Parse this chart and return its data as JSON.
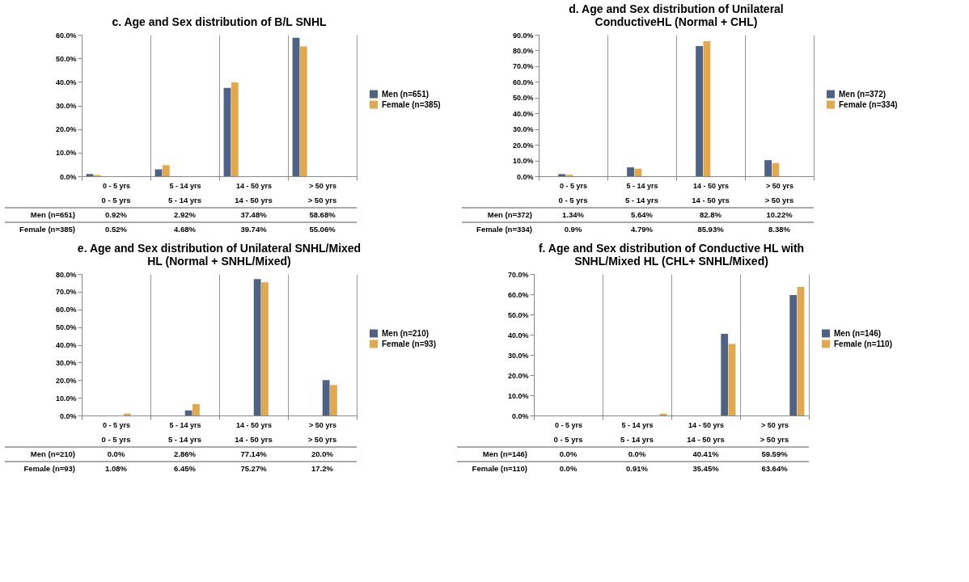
{
  "chart_data": [
    {
      "type": "bar",
      "title": "c. Age and Sex distribution of B/L SNHL",
      "categories": [
        "0 - 5 yrs",
        "5 - 14 yrs",
        "14 - 50 yrs",
        "> 50 yrs"
      ],
      "legend": "right",
      "ylim": [
        0,
        60
      ],
      "yticks": [
        {
          "value": 0,
          "label": "0.0%"
        },
        {
          "value": 10,
          "label": "10.0%"
        },
        {
          "value": 20,
          "label": "20.0%"
        },
        {
          "value": 30,
          "label": "30.0%"
        },
        {
          "value": 40,
          "label": "40.0%"
        },
        {
          "value": 50,
          "label": "50.0%"
        },
        {
          "value": 60,
          "label": "60.0%"
        }
      ],
      "series": [
        {
          "name": "Men (n=651)",
          "color": "#4d6285",
          "values": [
            0.92,
            2.92,
            37.48,
            58.68
          ],
          "value_labels": [
            "0.92%",
            "2.92%",
            "37.48%",
            "58.68%"
          ]
        },
        {
          "name": "Female (n=385)",
          "color": "#e2a84e",
          "values": [
            0.52,
            4.68,
            39.74,
            55.06
          ],
          "value_labels": [
            "0.52%",
            "4.68%",
            "39.74%",
            "55.06%"
          ]
        }
      ]
    },
    {
      "type": "bar",
      "title": "d. Age and Sex distribution of Unilateral ConductiveHL (Normal + CHL)",
      "categories": [
        "0 - 5 yrs",
        "5 - 14 yrs",
        "14 - 50 yrs",
        "> 50 yrs"
      ],
      "legend": "right",
      "ylim": [
        0,
        90
      ],
      "yticks": [
        {
          "value": 0,
          "label": "0.0%"
        },
        {
          "value": 10,
          "label": "10.0%"
        },
        {
          "value": 20,
          "label": "20.0%"
        },
        {
          "value": 30,
          "label": "30.0%"
        },
        {
          "value": 40,
          "label": "40.0%"
        },
        {
          "value": 50,
          "label": "50.0%"
        },
        {
          "value": 60,
          "label": "60.0%"
        },
        {
          "value": 70,
          "label": "70.0%"
        },
        {
          "value": 80,
          "label": "80.0%"
        },
        {
          "value": 90,
          "label": "90.0%"
        }
      ],
      "series": [
        {
          "name": "Men (n=372)",
          "color": "#4d6285",
          "values": [
            1.34,
            5.64,
            82.8,
            10.22
          ],
          "value_labels": [
            "1.34%",
            "5.64%",
            "82.8%",
            "10.22%"
          ]
        },
        {
          "name": "Female (n=334)",
          "color": "#e2a84e",
          "values": [
            0.9,
            4.79,
            85.93,
            8.38
          ],
          "value_labels": [
            "0.9%",
            "4.79%",
            "85.93%",
            "8.38%"
          ]
        }
      ]
    },
    {
      "type": "bar",
      "title": "e. Age and Sex distribution of Unilateral SNHL/Mixed HL (Normal + SNHL/Mixed)",
      "categories": [
        "0 - 5 yrs",
        "5 - 14 yrs",
        "14 - 50 yrs",
        "> 50 yrs"
      ],
      "legend": "right",
      "ylim": [
        0,
        80
      ],
      "yticks": [
        {
          "value": 0,
          "label": "0.0%"
        },
        {
          "value": 10,
          "label": "10.0%"
        },
        {
          "value": 20,
          "label": "20.0%"
        },
        {
          "value": 30,
          "label": "30.0%"
        },
        {
          "value": 40,
          "label": "40.0%"
        },
        {
          "value": 50,
          "label": "50.0%"
        },
        {
          "value": 60,
          "label": "60.0%"
        },
        {
          "value": 70,
          "label": "70.0%"
        },
        {
          "value": 80,
          "label": "80.0%"
        }
      ],
      "series": [
        {
          "name": "Men (n=210)",
          "color": "#4d6285",
          "values": [
            0.0,
            2.86,
            77.14,
            20.0
          ],
          "value_labels": [
            "0.0%",
            "2.86%",
            "77.14%",
            "20.0%"
          ]
        },
        {
          "name": "Female (n=93)",
          "color": "#e2a84e",
          "values": [
            1.08,
            6.45,
            75.27,
            17.2
          ],
          "value_labels": [
            "1.08%",
            "6.45%",
            "75.27%",
            "17.2%"
          ]
        }
      ]
    },
    {
      "type": "bar",
      "title": "f. Age and Sex distribution of Conductive HL with SNHL/Mixed HL (CHL+ SNHL/Mixed)",
      "categories": [
        "0 - 5 yrs",
        "5 - 14 yrs",
        "14 - 50 yrs",
        "> 50 yrs"
      ],
      "legend": "right",
      "ylim": [
        0,
        70
      ],
      "yticks": [
        {
          "value": 0,
          "label": "0.0%"
        },
        {
          "value": 10,
          "label": "10.0%"
        },
        {
          "value": 20,
          "label": "20.0%"
        },
        {
          "value": 30,
          "label": "30.0%"
        },
        {
          "value": 40,
          "label": "40.0%"
        },
        {
          "value": 50,
          "label": "50.0%"
        },
        {
          "value": 60,
          "label": "60.0%"
        },
        {
          "value": 70,
          "label": "70.0%"
        }
      ],
      "series": [
        {
          "name": "Men (n=146)",
          "color": "#4d6285",
          "values": [
            0.0,
            0.0,
            40.41,
            59.59
          ],
          "value_labels": [
            "0.0%",
            "0.0%",
            "40.41%",
            "59.59%"
          ]
        },
        {
          "name": "Female (n=110)",
          "color": "#e2a84e",
          "values": [
            0.0,
            0.91,
            35.45,
            63.64
          ],
          "value_labels": [
            "0.0%",
            "0.91%",
            "35.45%",
            "63.64%"
          ]
        }
      ]
    }
  ]
}
